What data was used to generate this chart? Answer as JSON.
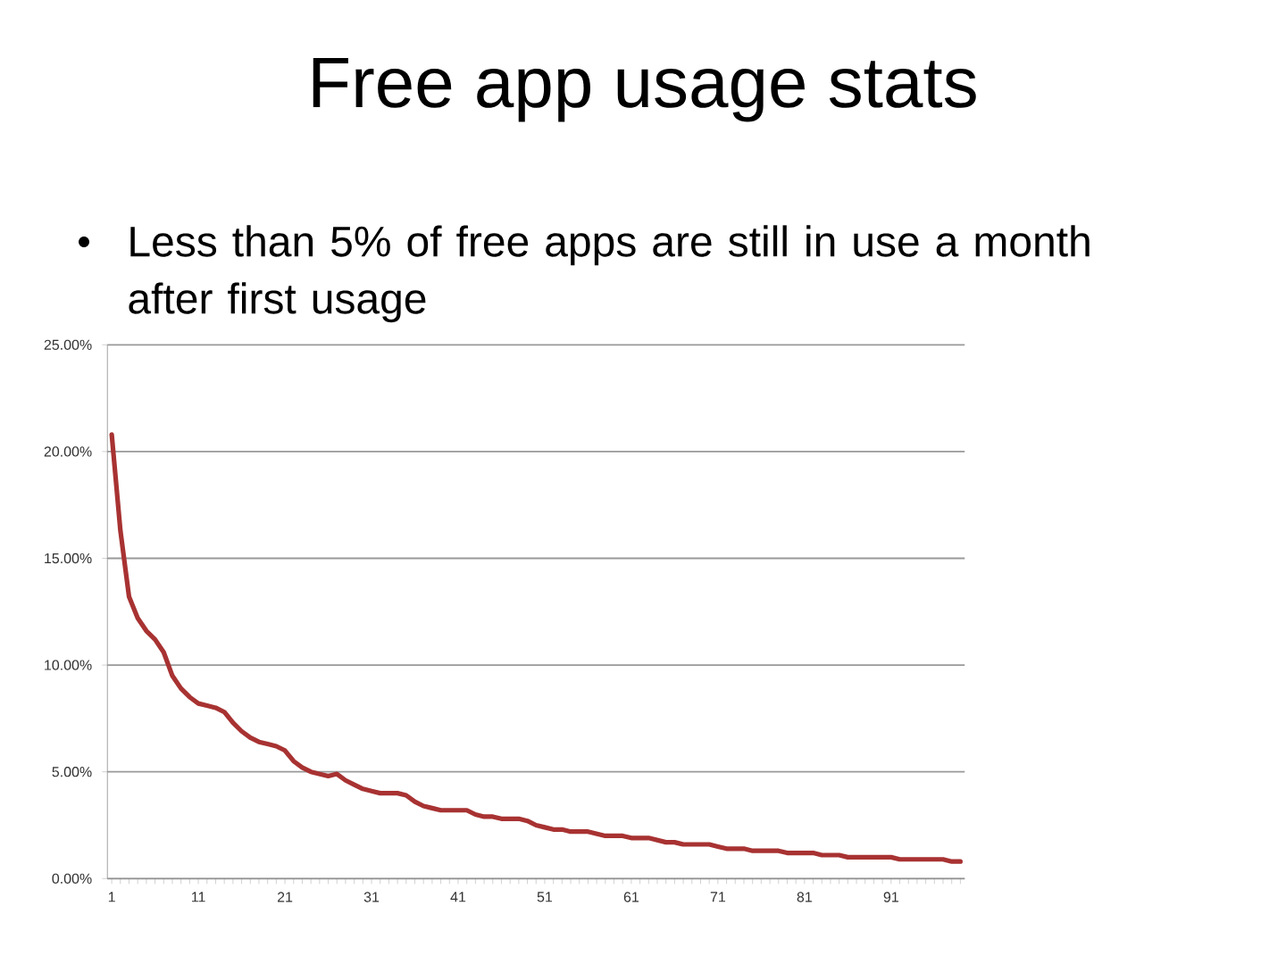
{
  "chart_data": {
    "type": "line",
    "title": "Free app usage stats",
    "subtitle": "Less than 5% of free apps are still in use a month after first usage",
    "categories": [
      "1",
      null,
      null,
      null,
      null,
      null,
      null,
      null,
      null,
      null,
      "11",
      null,
      null,
      null,
      null,
      null,
      null,
      null,
      null,
      null,
      "21",
      null,
      null,
      null,
      null,
      null,
      null,
      null,
      null,
      null,
      "31",
      null,
      null,
      null,
      null,
      null,
      null,
      null,
      null,
      null,
      "41",
      null,
      null,
      null,
      null,
      null,
      null,
      null,
      null,
      null,
      "51",
      null,
      null,
      null,
      null,
      null,
      null,
      null,
      null,
      null,
      "61",
      null,
      null,
      null,
      null,
      null,
      null,
      null,
      null,
      null,
      "71",
      null,
      null,
      null,
      null,
      null,
      null,
      null,
      null,
      null,
      "81",
      null,
      null,
      null,
      null,
      null,
      null,
      null,
      null,
      null,
      "91",
      null,
      null,
      null,
      null,
      null,
      null,
      null,
      null
    ],
    "values": [
      20.8,
      16.3,
      13.2,
      12.2,
      11.6,
      11.2,
      10.6,
      9.5,
      8.9,
      8.5,
      8.2,
      8.1,
      8.0,
      7.8,
      7.3,
      6.9,
      6.6,
      6.4,
      6.3,
      6.2,
      6.0,
      5.5,
      5.2,
      5.0,
      4.9,
      4.8,
      4.9,
      4.6,
      4.4,
      4.2,
      4.1,
      4.0,
      4.0,
      4.0,
      3.9,
      3.6,
      3.4,
      3.3,
      3.2,
      3.2,
      3.2,
      3.2,
      3.0,
      2.9,
      2.9,
      2.8,
      2.8,
      2.8,
      2.7,
      2.5,
      2.4,
      2.3,
      2.3,
      2.2,
      2.2,
      2.2,
      2.1,
      2.0,
      2.0,
      2.0,
      1.9,
      1.9,
      1.9,
      1.8,
      1.7,
      1.7,
      1.6,
      1.6,
      1.6,
      1.6,
      1.5,
      1.4,
      1.4,
      1.4,
      1.3,
      1.3,
      1.3,
      1.3,
      1.2,
      1.2,
      1.2,
      1.2,
      1.1,
      1.1,
      1.1,
      1.0,
      1.0,
      1.0,
      1.0,
      1.0,
      1.0,
      0.9,
      0.9,
      0.9,
      0.9,
      0.9,
      0.9,
      0.8,
      0.8
    ],
    "color": "#a83232",
    "line_style": "solid",
    "ylim": [
      0,
      25
    ],
    "yticks": [
      {
        "value": 0,
        "label": "0.00%"
      },
      {
        "value": 5,
        "label": "5.00%"
      },
      {
        "value": 10,
        "label": "10.00%"
      },
      {
        "value": 15,
        "label": "15.00%"
      },
      {
        "value": 20,
        "label": "20.00%"
      },
      {
        "value": 25,
        "label": "25.00%"
      }
    ],
    "grid": "y"
  }
}
